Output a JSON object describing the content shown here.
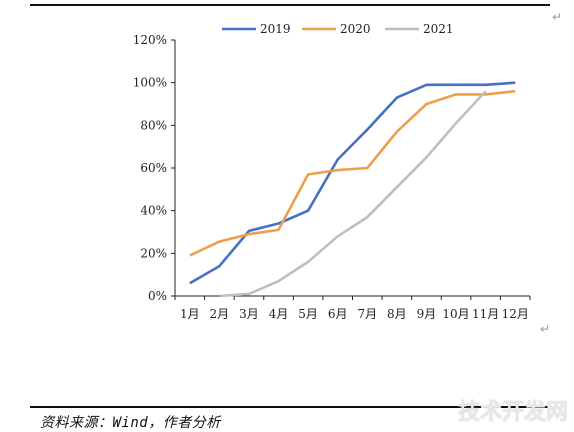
{
  "chart_data": {
    "type": "line",
    "categories": [
      "1月",
      "2月",
      "3月",
      "4月",
      "5月",
      "6月",
      "7月",
      "8月",
      "9月",
      "10月",
      "11月",
      "12月"
    ],
    "series": [
      {
        "name": "2019",
        "color": "#4472C4",
        "values": [
          6,
          14,
          30.5,
          34,
          40,
          64,
          78,
          93,
          99,
          99,
          99,
          100
        ]
      },
      {
        "name": "2020",
        "color": "#ED9F4B",
        "values": [
          19,
          25.5,
          29,
          31,
          57,
          59,
          60,
          77,
          90,
          94.5,
          94.5,
          96
        ]
      },
      {
        "name": "2021",
        "color": "#BFBFBF",
        "values": [
          null,
          0,
          1,
          7,
          16,
          28,
          37,
          51,
          65,
          81,
          96,
          null
        ]
      }
    ],
    "yticks": [
      "0%",
      "20%",
      "40%",
      "60%",
      "80%",
      "100%",
      "120%"
    ],
    "ylim": [
      0,
      120
    ],
    "legend_position": "top",
    "grid": false
  },
  "source_text": "资料来源：Wind，作者分析",
  "watermark_text": "技术开发网"
}
